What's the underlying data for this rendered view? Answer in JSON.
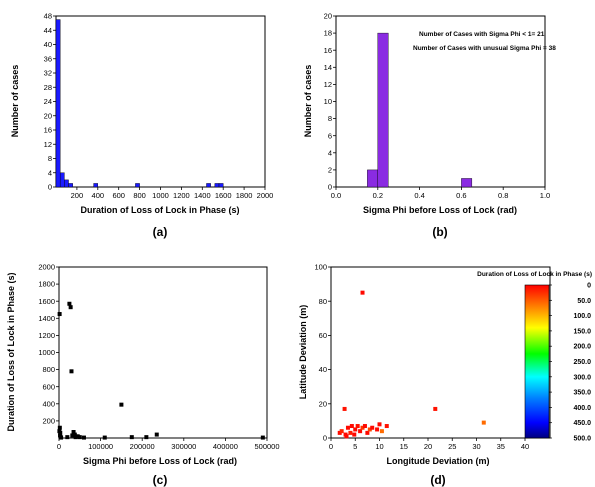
{
  "colors": {
    "hist_blue": "#1a1aff",
    "hist_purple": "#8a2be2",
    "scatter_black": "#000000"
  },
  "colorbar": {
    "title": "Duration of Loss of Lock in Phase (s)",
    "ticks": [
      "0",
      "50.0",
      "100.0",
      "150.0",
      "200.0",
      "250.0",
      "300.0",
      "350.0",
      "400.0",
      "450.0",
      "500.0"
    ],
    "stops": [
      "#ff0000",
      "#ff7f00",
      "#ffff00",
      "#00ff00",
      "#00ffff",
      "#0080ff",
      "#0000ff",
      "#000080"
    ]
  },
  "chart_data": [
    {
      "type": "bar",
      "panel_label": "(a)",
      "xlabel": "Duration of Loss of Lock in Phase (s)",
      "ylabel": "Number of cases",
      "xlim": [
        0,
        2000
      ],
      "ylim": [
        0,
        48
      ],
      "xticks": [
        "200",
        "400",
        "600",
        "800",
        "1000",
        "1200",
        "1400",
        "1600",
        "1800",
        "2000"
      ],
      "xtick_values": [
        200,
        400,
        600,
        800,
        1000,
        1200,
        1400,
        1600,
        1800,
        2000
      ],
      "yticks": [
        "0",
        "4",
        "8",
        "12",
        "16",
        "20",
        "24",
        "28",
        "32",
        "36",
        "40",
        "44",
        "48"
      ],
      "ytick_values": [
        0,
        4,
        8,
        12,
        16,
        20,
        24,
        28,
        32,
        36,
        40,
        44,
        48
      ],
      "bins": [
        {
          "start": 0,
          "end": 40,
          "count": 47
        },
        {
          "start": 40,
          "end": 80,
          "count": 4
        },
        {
          "start": 80,
          "end": 120,
          "count": 2
        },
        {
          "start": 120,
          "end": 160,
          "count": 1
        },
        {
          "start": 360,
          "end": 400,
          "count": 1
        },
        {
          "start": 760,
          "end": 800,
          "count": 1
        },
        {
          "start": 1440,
          "end": 1480,
          "count": 1
        },
        {
          "start": 1520,
          "end": 1560,
          "count": 1
        },
        {
          "start": 1560,
          "end": 1600,
          "count": 1
        }
      ]
    },
    {
      "type": "bar",
      "panel_label": "(b)",
      "xlabel": "Sigma Phi before Loss of Lock (rad)",
      "ylabel": "Number of cases",
      "xlim": [
        0,
        1.0
      ],
      "ylim": [
        0,
        20
      ],
      "xticks": [
        "0.0",
        "0.2",
        "0.4",
        "0.6",
        "0.8",
        "1.0"
      ],
      "xtick_values": [
        0,
        0.2,
        0.4,
        0.6,
        0.8,
        1.0
      ],
      "yticks": [
        "0",
        "2",
        "4",
        "6",
        "8",
        "10",
        "12",
        "14",
        "16",
        "18",
        "20"
      ],
      "ytick_values": [
        0,
        2,
        4,
        6,
        8,
        10,
        12,
        14,
        16,
        18,
        20
      ],
      "annotations": [
        "Number of Cases with Sigma Phi < 1= 21",
        "Number of Cases with unusual Sigma Phi = 38"
      ],
      "bins": [
        {
          "start": 0.15,
          "end": 0.2,
          "count": 2
        },
        {
          "start": 0.2,
          "end": 0.25,
          "count": 18
        },
        {
          "start": 0.6,
          "end": 0.65,
          "count": 1
        }
      ]
    },
    {
      "type": "scatter",
      "panel_label": "(c)",
      "xlabel": "Sigma Phi before Loss of Lock (rad)",
      "ylabel": "Duration of Loss of Lock in Phase (s)",
      "xlim": [
        0,
        500000
      ],
      "ylim": [
        0,
        2000
      ],
      "xticks": [
        "0",
        "100000",
        "200000",
        "300000",
        "400000",
        "500000"
      ],
      "xtick_values": [
        0,
        100000,
        200000,
        300000,
        400000,
        500000
      ],
      "yticks": [
        "200",
        "400",
        "600",
        "800",
        "1000",
        "1200",
        "1400",
        "1600",
        "1800",
        "2000"
      ],
      "ytick_values": [
        200,
        400,
        600,
        800,
        1000,
        1200,
        1400,
        1600,
        1800,
        2000
      ],
      "points": [
        [
          1500,
          1450
        ],
        [
          2000,
          120
        ],
        [
          3000,
          60
        ],
        [
          2500,
          30
        ],
        [
          4000,
          10
        ],
        [
          1000,
          80
        ],
        [
          5000,
          5
        ],
        [
          25000,
          1570
        ],
        [
          28000,
          1530
        ],
        [
          30000,
          780
        ],
        [
          35000,
          70
        ],
        [
          32000,
          30
        ],
        [
          38000,
          40
        ],
        [
          20000,
          10
        ],
        [
          42000,
          15
        ],
        [
          45000,
          20
        ],
        [
          50000,
          10
        ],
        [
          40000,
          10
        ],
        [
          60000,
          5
        ],
        [
          150000,
          390
        ],
        [
          175000,
          10
        ],
        [
          210000,
          10
        ],
        [
          235000,
          40
        ],
        [
          490000,
          5
        ],
        [
          110000,
          5
        ]
      ]
    },
    {
      "type": "scatter",
      "panel_label": "(d)",
      "xlabel": "Longitude Deviation (m)",
      "ylabel": "Latitude Deviation (m)",
      "xlim": [
        0,
        40
      ],
      "ylim": [
        0,
        100
      ],
      "xticks": [
        "0",
        "5",
        "10",
        "15",
        "20",
        "25",
        "30",
        "35",
        "40"
      ],
      "xtick_values": [
        0,
        5,
        10,
        15,
        20,
        25,
        30,
        35,
        40
      ],
      "yticks": [
        "0",
        "20",
        "40",
        "60",
        "80",
        "100"
      ],
      "ytick_values": [
        0,
        20,
        40,
        60,
        80,
        100
      ],
      "color_scale": [
        0,
        500
      ],
      "points": [
        {
          "x": 6.5,
          "y": 85,
          "v": 5
        },
        {
          "x": 2.8,
          "y": 17,
          "v": 10
        },
        {
          "x": 21.5,
          "y": 17,
          "v": 10
        },
        {
          "x": 31.5,
          "y": 9,
          "v": 60
        },
        {
          "x": 1.8,
          "y": 3,
          "v": 5
        },
        {
          "x": 2.2,
          "y": 4,
          "v": 20
        },
        {
          "x": 3.0,
          "y": 2,
          "v": 5
        },
        {
          "x": 3.5,
          "y": 6,
          "v": 5
        },
        {
          "x": 4.0,
          "y": 3,
          "v": 15
        },
        {
          "x": 4.3,
          "y": 7,
          "v": 5
        },
        {
          "x": 5.0,
          "y": 5,
          "v": 5
        },
        {
          "x": 5.5,
          "y": 7,
          "v": 10
        },
        {
          "x": 6.0,
          "y": 4,
          "v": 5
        },
        {
          "x": 6.5,
          "y": 6,
          "v": 30
        },
        {
          "x": 7.0,
          "y": 7,
          "v": 5
        },
        {
          "x": 7.5,
          "y": 3,
          "v": 5
        },
        {
          "x": 8.0,
          "y": 5,
          "v": 40
        },
        {
          "x": 8.5,
          "y": 6,
          "v": 5
        },
        {
          "x": 9.5,
          "y": 5,
          "v": 5
        },
        {
          "x": 10.0,
          "y": 8,
          "v": 5
        },
        {
          "x": 10.5,
          "y": 4,
          "v": 60
        },
        {
          "x": 11.5,
          "y": 7,
          "v": 10
        },
        {
          "x": 3.2,
          "y": 1,
          "v": 5
        },
        {
          "x": 4.8,
          "y": 2,
          "v": 5
        }
      ]
    }
  ]
}
